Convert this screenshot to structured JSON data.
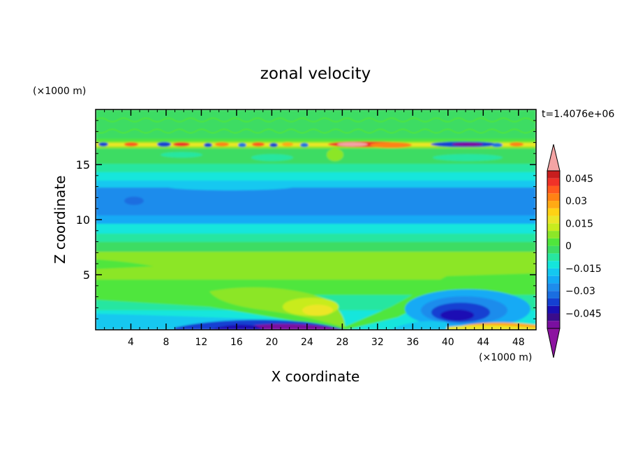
{
  "chart_data": {
    "type": "heatmap",
    "title": "zonal velocity",
    "xlabel": "X coordinate",
    "ylabel": "Z coordinate",
    "x_unit": "(×1000 m)",
    "y_unit": "(×1000 m)",
    "time_label": "t=1.4076e+06",
    "xlim": [
      0,
      50
    ],
    "ylim": [
      0,
      20
    ],
    "x_ticks": [
      4,
      8,
      12,
      16,
      20,
      24,
      28,
      32,
      36,
      40,
      44,
      48
    ],
    "x_tick_labels": [
      "4",
      "8",
      "12",
      "16",
      "20",
      "24",
      "28",
      "32",
      "36",
      "40",
      "44",
      "48"
    ],
    "y_ticks": [
      5,
      10,
      15
    ],
    "y_tick_labels": [
      "5",
      "10",
      "15"
    ],
    "colorbar": {
      "levels": [
        -0.055,
        -0.05,
        -0.045,
        -0.04,
        -0.035,
        -0.03,
        -0.025,
        -0.02,
        -0.015,
        -0.01,
        -0.005,
        0,
        0.005,
        0.01,
        0.015,
        0.02,
        0.025,
        0.03,
        0.035,
        0.04,
        0.045,
        0.05
      ],
      "tick_values": [
        0.045,
        0.03,
        0.015,
        0,
        -0.015,
        -0.03,
        -0.045
      ],
      "tick_labels": [
        "0.045",
        "0.03",
        "0.015",
        "0",
        "−0.015",
        "−0.03",
        "−0.045"
      ],
      "colors": [
        "#7a0fa0",
        "#3a0c8c",
        "#1a0fb4",
        "#1440d2",
        "#1a6ee0",
        "#1e8cec",
        "#14aaf5",
        "#14c8f0",
        "#14e6dc",
        "#28e6a0",
        "#3cdc64",
        "#50e63c",
        "#8ce628",
        "#c8ec1e",
        "#ece628",
        "#ffd214",
        "#ffaa14",
        "#ff8214",
        "#ff5a1e",
        "#f03228",
        "#c81e1e"
      ],
      "over_color": "#f4a4a4",
      "under_color": "#8c14a0"
    }
  }
}
